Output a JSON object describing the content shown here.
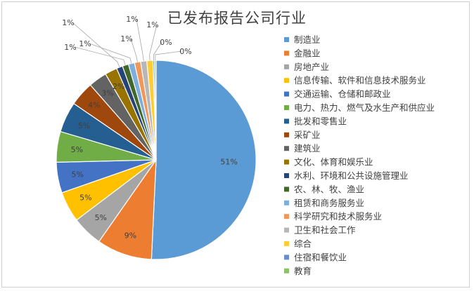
{
  "chart_data": {
    "type": "pie",
    "title": "已发布报告公司行业",
    "legend_position": "right",
    "slices": [
      {
        "name": "制造业",
        "value": 51,
        "label": "51%",
        "color": "#5B9BD5"
      },
      {
        "name": "金融业",
        "value": 9,
        "label": "9%",
        "color": "#ED7D31"
      },
      {
        "name": "房地产业",
        "value": 5,
        "label": "5%",
        "color": "#A5A5A5"
      },
      {
        "name": "信息传输、软件和信息技术服务业",
        "value": 5,
        "label": "5%",
        "color": "#FFC000"
      },
      {
        "name": "交通运输、仓储和邮政业",
        "value": 5,
        "label": "5%",
        "color": "#4472C4"
      },
      {
        "name": "电力、热力、燃气及水生产和供应业",
        "value": 5,
        "label": "5%",
        "color": "#70AD47"
      },
      {
        "name": "批发和零售业",
        "value": 5,
        "label": "5%",
        "color": "#255E91"
      },
      {
        "name": "采矿业",
        "value": 4,
        "label": "4%",
        "color": "#9E480E"
      },
      {
        "name": "建筑业",
        "value": 3,
        "label": "3%",
        "color": "#636363"
      },
      {
        "name": "文化、体育和娱乐业",
        "value": 2,
        "label": "2%",
        "color": "#997300"
      },
      {
        "name": "水利、环境和公共设施管理业",
        "value": 1,
        "label": "1%",
        "color": "#264478"
      },
      {
        "name": "农、林、牧、渔业",
        "value": 1,
        "label": "1%",
        "color": "#43682B"
      },
      {
        "name": "租赁和商务服务业",
        "value": 1,
        "label": "1%",
        "color": "#7CAFDD"
      },
      {
        "name": "科学研究和技术服务业",
        "value": 1,
        "label": "1%",
        "color": "#F1975A"
      },
      {
        "name": "卫生和社会工作",
        "value": 1,
        "label": "1%",
        "color": "#B7B7B7"
      },
      {
        "name": "综合",
        "value": 1,
        "label": "1%",
        "color": "#FFCD33"
      },
      {
        "name": "住宿和餐饮业",
        "value": 0,
        "label": "0%",
        "color": "#698ED0"
      },
      {
        "name": "教育",
        "value": 0,
        "label": "0%",
        "color": "#8CC168"
      }
    ]
  }
}
